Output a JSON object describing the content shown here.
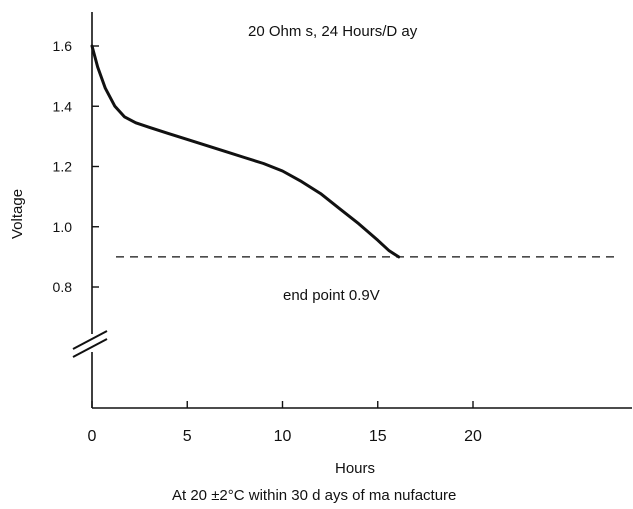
{
  "chart_data": {
    "type": "line",
    "title": "20 Ohm s, 24 Hours/D  ay",
    "xlabel": "Hours",
    "ylabel": "Voltage",
    "footnote": "At 20 ±2°C within 30 d  ays of ma  nufacture",
    "x_ticks": [
      {
        "value": 0,
        "label": "0"
      },
      {
        "value": 5,
        "label": "5"
      },
      {
        "value": 10,
        "label": "10"
      },
      {
        "value": 15,
        "label": "15"
      },
      {
        "value": 20,
        "label": "20"
      }
    ],
    "y_ticks": [
      {
        "value": 1.6,
        "label": "1.6"
      },
      {
        "value": 1.4,
        "label": "1.4"
      },
      {
        "value": 1.2,
        "label": "1.2"
      },
      {
        "value": 1.0,
        "label": "1.0"
      },
      {
        "value": 0.8,
        "label": "0.8"
      }
    ],
    "xlim": [
      0,
      30
    ],
    "ylim": [
      0.8,
      1.6
    ],
    "y_axis_break": true,
    "grid": false,
    "series": [
      {
        "color": "#111111",
        "points": [
          [
            0,
            1.6
          ],
          [
            0.3,
            1.53
          ],
          [
            0.7,
            1.46
          ],
          [
            1.2,
            1.4
          ],
          [
            1.7,
            1.365
          ],
          [
            2.3,
            1.345
          ],
          [
            3,
            1.33
          ],
          [
            4,
            1.31
          ],
          [
            5,
            1.29
          ],
          [
            6,
            1.27
          ],
          [
            7,
            1.25
          ],
          [
            8,
            1.23
          ],
          [
            9,
            1.21
          ],
          [
            10,
            1.185
          ],
          [
            11,
            1.15
          ],
          [
            12,
            1.11
          ],
          [
            13,
            1.06
          ],
          [
            14,
            1.01
          ],
          [
            15,
            0.955
          ],
          [
            15.6,
            0.92
          ],
          [
            16.1,
            0.9
          ]
        ]
      }
    ],
    "reference_line": {
      "y": 0.9,
      "style": "dashed",
      "label": "end point 0.9V"
    }
  }
}
